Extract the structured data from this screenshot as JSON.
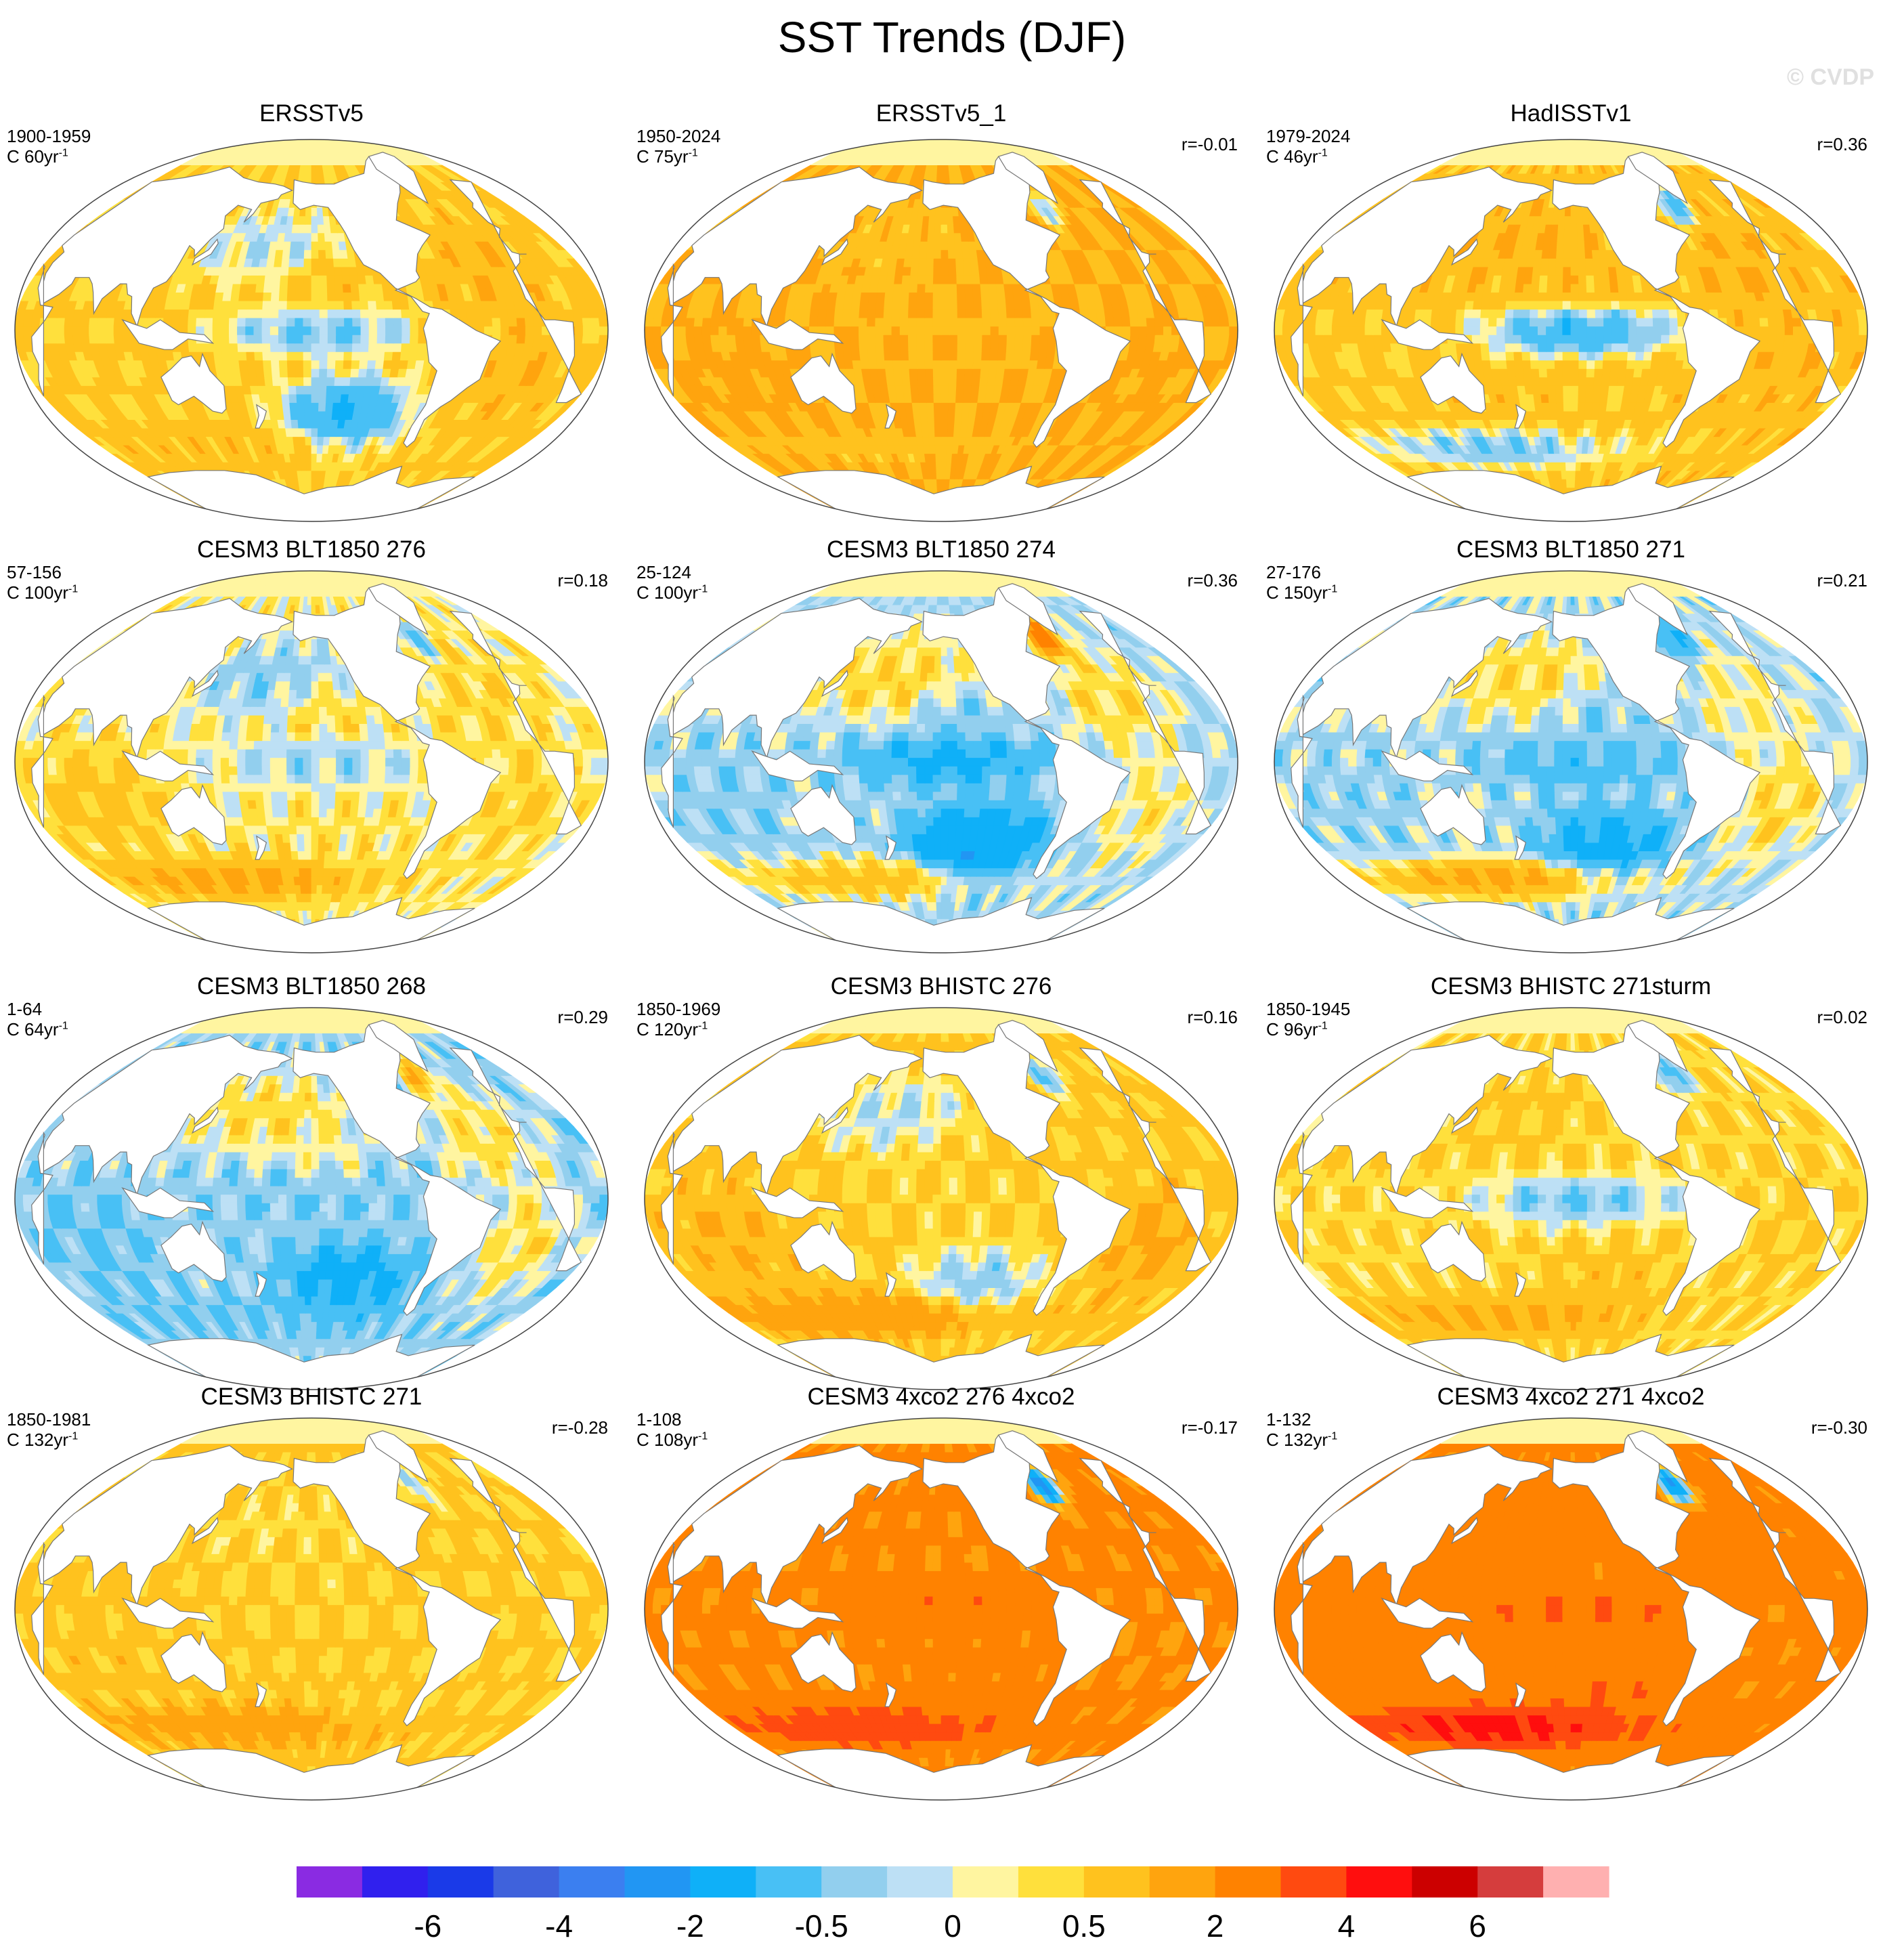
{
  "title": "SST Trends (DJF)",
  "watermark": "© CVDP",
  "chart_data": {
    "type": "heatmap",
    "title": "SST Trends (DJF)",
    "projection": "Robinson (Pacific-centered)",
    "panels": [
      {
        "title": "ERSSTv5",
        "period": "1900-1959",
        "scale": "C 60yr",
        "scale_exp": "-1",
        "r": "",
        "pattern": {
          "base": 0.6,
          "npac": -0.4,
          "nepac": 0.8,
          "eqpac": -0.8,
          "sepac": -1.5,
          "southern": 0.8,
          "natl": 1.0,
          "indian": 0.6,
          "satl": 1.0,
          "labrador": 0.5
        }
      },
      {
        "title": "ERSSTv5_1",
        "period": "1950-2024",
        "scale": "C 75yr",
        "scale_exp": "-1",
        "r": "r=-0.01",
        "pattern": {
          "base": 1.0,
          "npac": 0.7,
          "nepac": 1.0,
          "eqpac": 0.8,
          "sepac": 1.0,
          "southern": 0.7,
          "natl": 1.0,
          "indian": 1.2,
          "satl": 1.2,
          "labrador": -0.8
        }
      },
      {
        "title": "HadISSTv1",
        "period": "1979-2024",
        "scale": "C 46yr",
        "scale_exp": "-1",
        "r": "r=0.36",
        "pattern": {
          "base": 0.7,
          "npac": 1.0,
          "nepac": 0.8,
          "eqpac": -1.3,
          "sepac": 0.6,
          "southern": -0.8,
          "natl": 1.0,
          "indian": 0.5,
          "satl": 0.9,
          "labrador": -1.5
        }
      },
      {
        "title": "CESM3 BLT1850 276",
        "period": "57-156",
        "scale": "C 100yr",
        "scale_exp": "-1",
        "r": "r=0.18",
        "pattern": {
          "base": 0.2,
          "npac": -0.5,
          "nepac": 0.4,
          "eqpac": -0.4,
          "sepac": 0.3,
          "southern": 1.5,
          "natl": 0.5,
          "indian": 0.8,
          "satl": 0.6,
          "labrador": -0.8
        }
      },
      {
        "title": "CESM3 BLT1850 274",
        "period": "25-124",
        "scale": "C 100yr",
        "scale_exp": "-1",
        "r": "r=0.36",
        "pattern": {
          "base": -0.2,
          "npac": 0.7,
          "nepac": -0.5,
          "eqpac": -1.4,
          "sepac": -2.4,
          "southern": 1.0,
          "natl": 0.6,
          "indian": -0.4,
          "satl": 0.4,
          "labrador": 3.5
        }
      },
      {
        "title": "CESM3 BLT1850 271",
        "period": "27-176",
        "scale": "C 150yr",
        "scale_exp": "-1",
        "r": "r=0.21",
        "pattern": {
          "base": -0.2,
          "npac": 0.6,
          "nepac": -0.4,
          "eqpac": -0.9,
          "sepac": -1.6,
          "southern": 1.6,
          "natl": 0.3,
          "indian": -0.3,
          "satl": 0.6,
          "labrador": -1.6
        }
      },
      {
        "title": "CESM3 BLT1850 268",
        "period": "1-64",
        "scale": "C 64yr",
        "scale_exp": "-1",
        "r": "r=0.29",
        "pattern": {
          "base": -0.3,
          "npac": 0.6,
          "nepac": 0.2,
          "eqpac": -0.5,
          "sepac": -1.6,
          "southern": -0.6,
          "natl": 0.5,
          "indian": -0.6,
          "satl": 0.5,
          "labrador": 1.5
        }
      },
      {
        "title": "CESM3 BHISTC 276",
        "period": "1850-1969",
        "scale": "C 120yr",
        "scale_exp": "-1",
        "r": "r=0.16",
        "pattern": {
          "base": 0.6,
          "npac": -0.4,
          "nepac": 0.5,
          "eqpac": 0.4,
          "sepac": -0.6,
          "southern": 2.0,
          "natl": 0.6,
          "indian": 1.0,
          "satl": 1.3,
          "labrador": -1.2
        }
      },
      {
        "title": "CESM3 BHISTC 271sturm",
        "period": "1850-1945",
        "scale": "C 96yr",
        "scale_exp": "-1",
        "r": "r=0.02",
        "pattern": {
          "base": 0.4,
          "npac": 0.7,
          "nepac": 0.4,
          "eqpac": -0.7,
          "sepac": 0.8,
          "southern": 1.3,
          "natl": 0.5,
          "indian": 0.4,
          "satl": 0.6,
          "labrador": -1.3
        }
      },
      {
        "title": "CESM3 BHISTC 271",
        "period": "1850-1981",
        "scale": "C 132yr",
        "scale_exp": "-1",
        "r": "r=-0.28",
        "pattern": {
          "base": 0.6,
          "npac": 0.3,
          "nepac": 0.5,
          "eqpac": 0.5,
          "sepac": 0.6,
          "southern": 1.6,
          "natl": 0.6,
          "indian": 0.7,
          "satl": 0.6,
          "labrador": -0.5
        }
      },
      {
        "title": "CESM3 4xco2 276 4xco2",
        "period": "1-108",
        "scale": "C 108yr",
        "scale_exp": "-1",
        "r": "r=-0.17",
        "pattern": {
          "base": 2.2,
          "npac": 2.2,
          "nepac": 2.0,
          "eqpac": 3.0,
          "sepac": 2.4,
          "southern": 4.2,
          "natl": 2.2,
          "indian": 2.2,
          "satl": 2.0,
          "labrador": -4.0
        }
      },
      {
        "title": "CESM3 4xco2 271 4xco2",
        "period": "1-132",
        "scale": "C 132yr",
        "scale_exp": "-1",
        "r": "r=-0.30",
        "pattern": {
          "base": 2.3,
          "npac": 2.6,
          "nepac": 2.2,
          "eqpac": 3.2,
          "sepac": 3.0,
          "southern": 5.0,
          "natl": 2.4,
          "indian": 2.4,
          "satl": 2.2,
          "labrador": -4.0
        }
      }
    ],
    "colorbar": {
      "levels": [
        -8,
        -6,
        -5,
        -4,
        -3,
        -2,
        -1,
        -0.5,
        -0.2,
        0,
        0.2,
        0.5,
        1,
        2,
        3,
        4,
        5,
        6,
        8
      ],
      "colors": [
        "#8a2be2",
        "#3020ee",
        "#1a3ae8",
        "#3f62dc",
        "#3b7ff0",
        "#2196f3",
        "#0fb0f8",
        "#48c0f5",
        "#92cfee",
        "#bde0f5",
        "#fff5a0",
        "#ffe03c",
        "#ffc21e",
        "#ffa40e",
        "#ff8200",
        "#ff4a10",
        "#ff0e0e",
        "#cc0000",
        "#d53d3d",
        "#ffb0b0"
      ],
      "tick_labels": [
        "-6",
        "-4",
        "-2",
        "-0.5",
        "0",
        "0.5",
        "2",
        "4",
        "6"
      ],
      "tick_values": [
        -6,
        -4,
        -2,
        -0.5,
        0,
        0.5,
        2,
        4,
        6
      ]
    }
  }
}
